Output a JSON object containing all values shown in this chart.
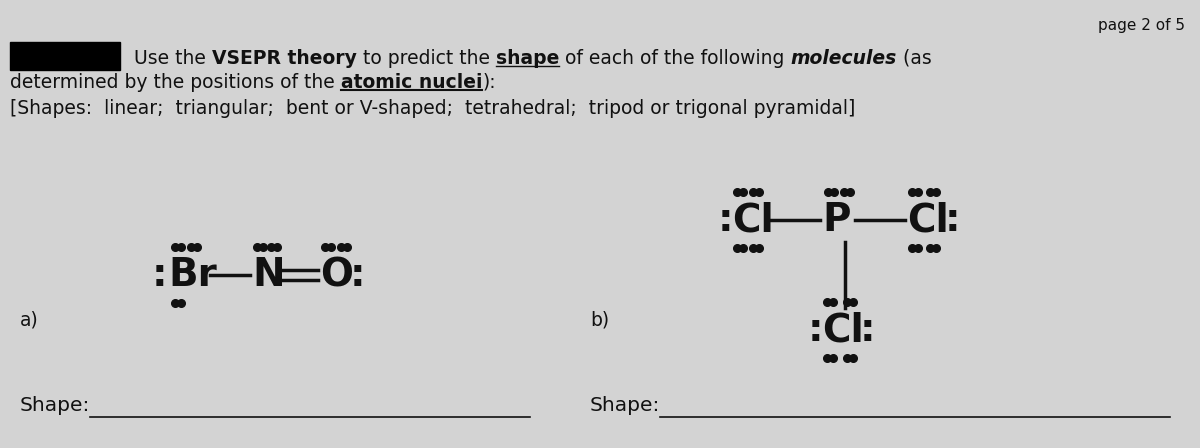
{
  "bg_color": "#d3d3d3",
  "page_text": "page 2 of 5",
  "shapes_line": "[Shapes:  linear;  triangular;  bent or V-shaped;  tetrahedral;  tripod or trigonal pyramidal]",
  "label_a": "a)",
  "label_b": "b)",
  "shape_label": "Shape:",
  "text_color": "#111111",
  "fs_main": 13.5,
  "fs_formula": 28,
  "fs_page": 11
}
